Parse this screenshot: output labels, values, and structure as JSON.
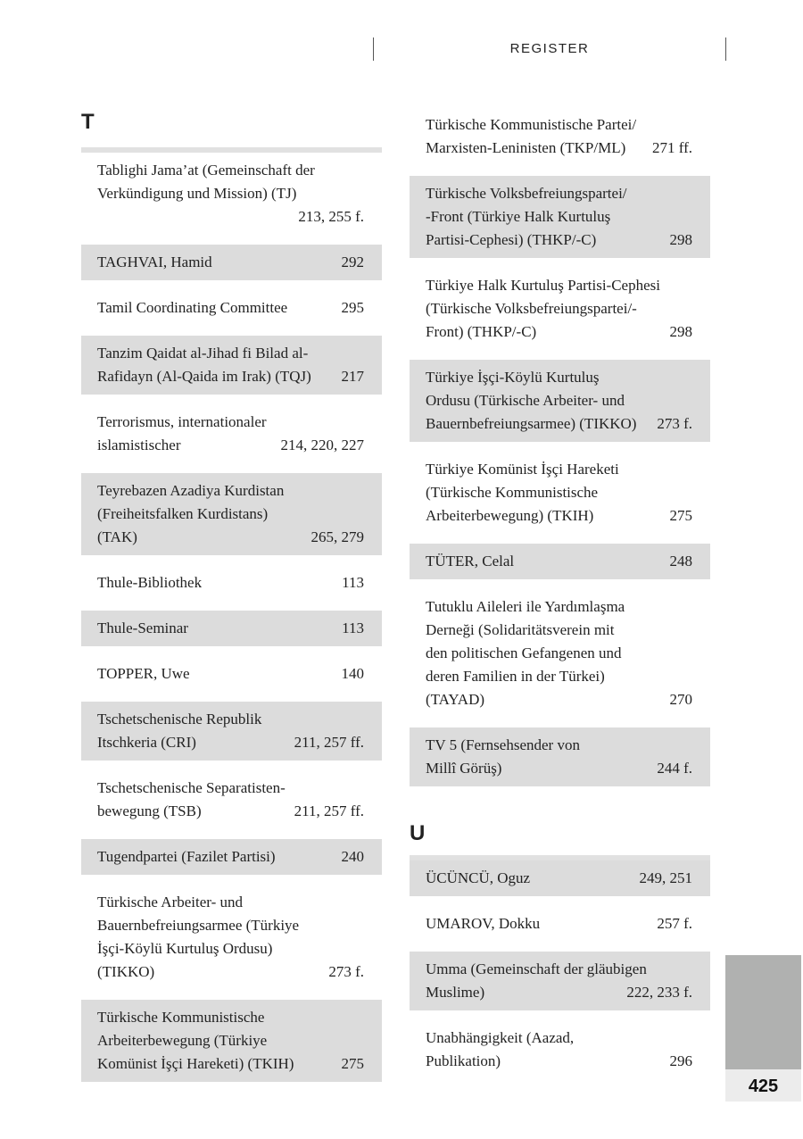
{
  "header": {
    "running_title": "REGISTER"
  },
  "page_number": "425",
  "colors": {
    "shade": "#dcdcdc",
    "thumb_tab": "#b0b1b0"
  },
  "left": {
    "heading": "T",
    "entries": [
      {
        "lines": [
          "Tablighi Jama’at (Gemeinschaft der",
          "Verkündigung und Mission) (TJ)",
          ""
        ],
        "pages": "213, 255 f."
      },
      {
        "lines": [
          "TAGHVAI, Hamid"
        ],
        "pages": "292"
      },
      {
        "lines": [
          "Tamil Coordinating Committee"
        ],
        "pages": "295"
      },
      {
        "lines": [
          "Tanzim Qaidat al-Jihad fi Bilad al-",
          "Rafidayn (Al-Qaida im Irak) (TQJ)"
        ],
        "pages": "217"
      },
      {
        "lines": [
          "Terrorismus, internationaler",
          "islamistischer"
        ],
        "pages": "214, 220, 227"
      },
      {
        "lines": [
          "Teyrebazen Azadiya Kurdistan",
          "(Freiheitsfalken Kurdistans)",
          "(TAK)"
        ],
        "pages": "265, 279"
      },
      {
        "lines": [
          "Thule-Bibliothek"
        ],
        "pages": "113"
      },
      {
        "lines": [
          "Thule-Seminar"
        ],
        "pages": "113"
      },
      {
        "lines": [
          "TOPPER, Uwe"
        ],
        "pages": "140"
      },
      {
        "lines": [
          "Tschetschenische Republik",
          "Itschkeria (CRI)"
        ],
        "pages": "211, 257 ff."
      },
      {
        "lines": [
          "Tschetschenische Separatisten-",
          "bewegung (TSB)"
        ],
        "pages": "211, 257 ff."
      },
      {
        "lines": [
          "Tugendpartei (Fazilet Partisi)"
        ],
        "pages": "240"
      },
      {
        "lines": [
          "Türkische Arbeiter- und",
          "Bauernbefreiungsarmee (Türkiye",
          "İşçi-Köylü Kurtuluş Ordusu)",
          "(TIKKO)"
        ],
        "pages": "273 f."
      },
      {
        "lines": [
          "Türkische Kommunistische",
          "Arbeiterbewegung (Türkiye",
          "Komünist İşçi Hareketi) (TKIH)"
        ],
        "pages": "275"
      }
    ]
  },
  "right": {
    "entries_t": [
      {
        "lines": [
          "Türkische Kommunistische Partei/",
          "Marxisten-Leninisten (TKP/ML)"
        ],
        "pages": "271 ff."
      },
      {
        "lines": [
          "Türkische Volksbefreiungspartei/",
          "-Front (Türkiye Halk Kurtuluş",
          "Partisi-Cephesi) (THKP/-C)"
        ],
        "pages": "298"
      },
      {
        "lines": [
          "Türkiye Halk Kurtuluş Partisi-Cephesi",
          "(Türkische Volksbefreiungspartei/-",
          "Front) (THKP/-C)"
        ],
        "pages": "298"
      },
      {
        "lines": [
          "Türkiye İşçi-Köylü Kurtuluş",
          "Ordusu (Türkische Arbeiter- und",
          "Bauernbefreiungsarmee) (TIKKO)"
        ],
        "pages": "273 f."
      },
      {
        "lines": [
          "Türkiye Komünist İşçi Hareketi",
          "(Türkische Kommunistische",
          "Arbeiterbewegung) (TKIH)"
        ],
        "pages": "275"
      },
      {
        "lines": [
          "TÜTER, Celal"
        ],
        "pages": "248"
      },
      {
        "lines": [
          "Tutuklu Aileleri ile Yardımlaşma",
          "Derneği (Solidaritätsverein mit",
          "den politischen Gefangenen und",
          "deren Familien in der Türkei)",
          "(TAYAD)"
        ],
        "pages": "270"
      },
      {
        "lines": [
          "TV 5 (Fernsehsender von",
          "Millî Görüş)"
        ],
        "pages": "244 f."
      }
    ],
    "heading_u": "U",
    "entries_u": [
      {
        "lines": [
          "ÜCÜNCÜ, Oguz"
        ],
        "pages": "249, 251"
      },
      {
        "lines": [
          "UMAROV, Dokku"
        ],
        "pages": "257 f."
      },
      {
        "lines": [
          "Umma (Gemeinschaft der gläubigen",
          "Muslime)"
        ],
        "pages": "222, 233 f."
      },
      {
        "lines": [
          "Unabhängigkeit (Aazad,",
          "Publikation)"
        ],
        "pages": "296"
      }
    ]
  }
}
